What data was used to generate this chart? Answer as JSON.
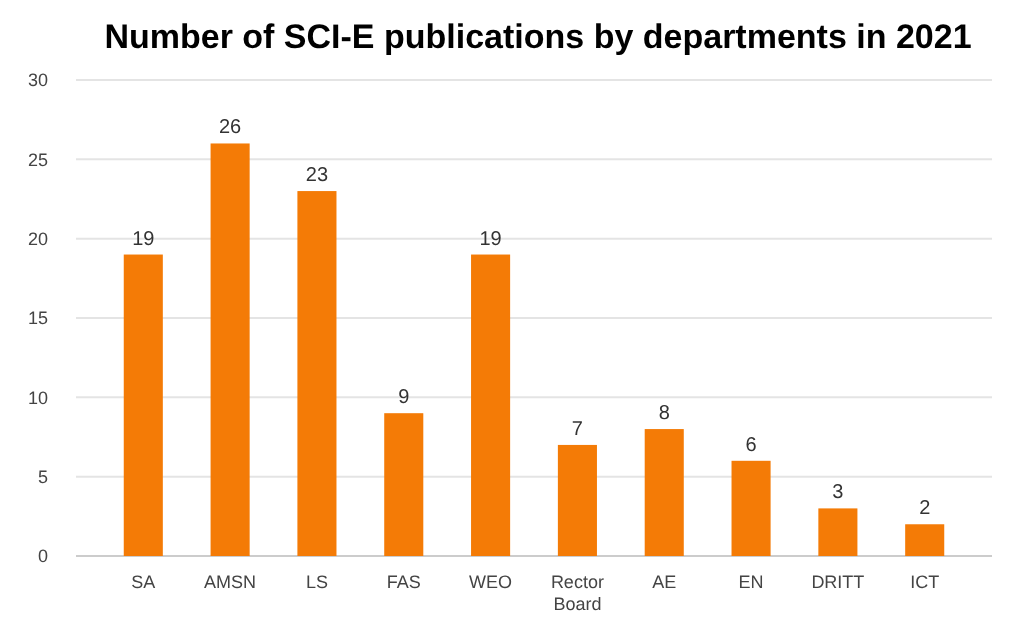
{
  "chart_data": {
    "type": "bar",
    "title": "Number of SCI-E publications by departments in 2021",
    "categories": [
      "SA",
      "AMSN",
      "LS",
      "FAS",
      "WEO",
      "Rector Board",
      "AE",
      "EN",
      "DRITT",
      "ICT"
    ],
    "values": [
      19,
      26,
      23,
      9,
      19,
      7,
      8,
      6,
      3,
      2
    ],
    "color": "#f47b06",
    "ylim": [
      0,
      30
    ],
    "yticks": [
      0,
      5,
      10,
      15,
      20,
      25,
      30
    ],
    "grid": "y",
    "data_labels": true
  }
}
